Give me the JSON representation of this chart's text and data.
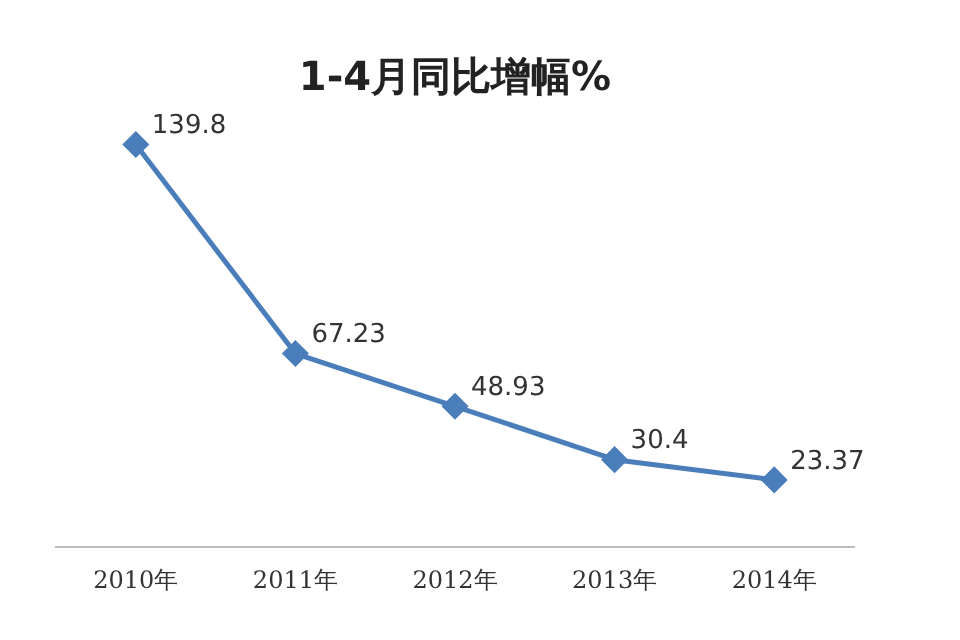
{
  "chart_data": {
    "type": "line",
    "title": "1-4月同比增幅%",
    "categories": [
      "2010年",
      "2011年",
      "2012年",
      "2013年",
      "2014年"
    ],
    "series": [
      {
        "color": "#4a7ebb",
        "values": [
          139.8,
          67.23,
          48.93,
          30.4,
          23.37
        ]
      }
    ],
    "data_labels": true,
    "marker": "diamond",
    "grid": false,
    "legend": false,
    "tick_labels": "x"
  }
}
